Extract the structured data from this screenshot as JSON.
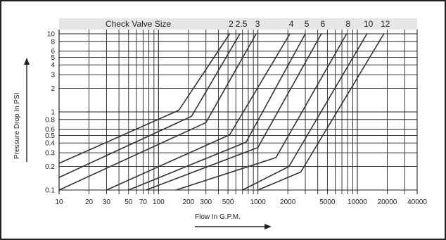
{
  "chart_data": {
    "type": "line",
    "header_label": "Check Valve Size",
    "xlabel": "Flow In G.P.M.",
    "ylabel": "Pressure Drop In PSI",
    "x_scale": "log",
    "y_scale": "log",
    "xlim": [
      10,
      40000
    ],
    "ylim": [
      0.1,
      10
    ],
    "x_ticks": [
      10,
      20,
      30,
      50,
      70,
      100,
      200,
      300,
      500,
      1000,
      2000,
      5000,
      10000,
      20000,
      40000
    ],
    "x_tick_labels": [
      "10",
      "20",
      "30",
      "50",
      "70",
      "100",
      "200",
      "300",
      "500",
      "1000",
      "2000",
      "5000",
      "10000",
      "20000",
      "40000"
    ],
    "y_ticks": [
      0.1,
      0.2,
      0.3,
      0.4,
      0.5,
      0.6,
      0.8,
      1,
      2,
      3,
      4,
      5,
      6,
      8,
      10
    ],
    "y_tick_labels": [
      "0.1",
      "0.2",
      "0.3",
      "0.4",
      "0.5",
      "0.6",
      "0.8",
      "1",
      "2",
      "3",
      "4",
      "5",
      "6",
      "8",
      "10"
    ],
    "series": [
      {
        "name": "2",
        "points": [
          [
            10,
            0.22
          ],
          [
            160,
            1.05
          ],
          [
            520,
            10
          ]
        ]
      },
      {
        "name": "2.5",
        "points": [
          [
            10,
            0.145
          ],
          [
            215,
            0.88
          ],
          [
            660,
            10
          ]
        ]
      },
      {
        "name": "3",
        "points": [
          [
            10,
            0.1
          ],
          [
            300,
            0.73
          ],
          [
            960,
            10
          ]
        ]
      },
      {
        "name": "4",
        "points": [
          [
            30,
            0.1
          ],
          [
            520,
            0.51
          ],
          [
            2100,
            10
          ]
        ]
      },
      {
        "name": "5",
        "points": [
          [
            50,
            0.1
          ],
          [
            760,
            0.41
          ],
          [
            3000,
            10
          ]
        ]
      },
      {
        "name": "6",
        "points": [
          [
            75,
            0.1
          ],
          [
            1000,
            0.35
          ],
          [
            4350,
            10
          ]
        ]
      },
      {
        "name": "8",
        "points": [
          [
            150,
            0.1
          ],
          [
            1520,
            0.26
          ],
          [
            7800,
            10
          ]
        ]
      },
      {
        "name": "10",
        "points": [
          [
            700,
            0.1
          ],
          [
            2050,
            0.2
          ],
          [
            12500,
            10
          ]
        ]
      },
      {
        "name": "12",
        "points": [
          [
            1000,
            0.1
          ],
          [
            2700,
            0.17
          ],
          [
            18500,
            10
          ]
        ]
      }
    ],
    "grid": true,
    "legend": "none"
  }
}
